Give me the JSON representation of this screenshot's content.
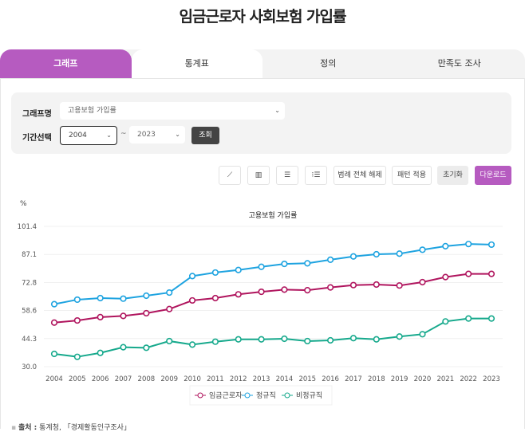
{
  "page_title": "임금근로자 사회보험 가입률",
  "tabs": [
    {
      "label": "그래프"
    },
    {
      "label": "통계표"
    },
    {
      "label": "정의"
    },
    {
      "label": "만족도 조사"
    }
  ],
  "filter": {
    "graph_label": "그래프명",
    "graph_value": "고용보험 가입률",
    "period_label": "기간선택",
    "from": "2004",
    "tilde": "~",
    "to": "2023",
    "query_button": "조회"
  },
  "toolbar": {
    "legend_off": "범례 전체 해제",
    "pattern": "패턴 적용",
    "reset": "초기화",
    "download": "다운로드",
    "icons": [
      "line-chart-icon",
      "bar-chart-icon",
      "horizontal-bar-icon",
      "list-icon"
    ]
  },
  "source": {
    "label": "출처 :",
    "text": "통계청, 「경제활동인구조사」"
  },
  "chart_data": {
    "type": "line",
    "title": "고용보험 가입률",
    "ylabel": "%",
    "xlabel": "",
    "ylim": [
      30.0,
      101.4
    ],
    "yticks": [
      "30.0",
      "44.3",
      "58.6",
      "72.8",
      "87.1",
      "101.4"
    ],
    "x": [
      "2004",
      "2005",
      "2006",
      "2007",
      "2008",
      "2009",
      "2010",
      "2011",
      "2012",
      "2013",
      "2014",
      "2015",
      "2016",
      "2017",
      "2018",
      "2019",
      "2020",
      "2021",
      "2022",
      "2023"
    ],
    "legend_position": "bottom",
    "grid": true,
    "series": [
      {
        "name": "임금근로자",
        "color": "#b0155e",
        "values": [
          52.4,
          53.5,
          55.2,
          55.8,
          57.2,
          59.3,
          63.7,
          64.9,
          66.8,
          68.1,
          69.2,
          68.9,
          70.3,
          71.5,
          71.8,
          71.3,
          73.0,
          75.6,
          77.2,
          77.2
        ]
      },
      {
        "name": "정규직",
        "color": "#1ea3e0",
        "values": [
          61.8,
          64.1,
          64.9,
          64.6,
          66.1,
          67.7,
          76.1,
          77.9,
          79.2,
          80.8,
          82.3,
          82.6,
          84.4,
          86.1,
          87.2,
          87.5,
          89.5,
          91.3,
          92.4,
          92.1
        ]
      },
      {
        "name": "비정규직",
        "color": "#16a98c",
        "values": [
          36.5,
          35.0,
          37.0,
          39.9,
          39.6,
          43.0,
          41.2,
          42.7,
          43.9,
          43.9,
          44.2,
          43.0,
          43.4,
          44.5,
          43.9,
          45.3,
          46.5,
          53.0,
          54.5,
          54.5
        ]
      }
    ]
  }
}
